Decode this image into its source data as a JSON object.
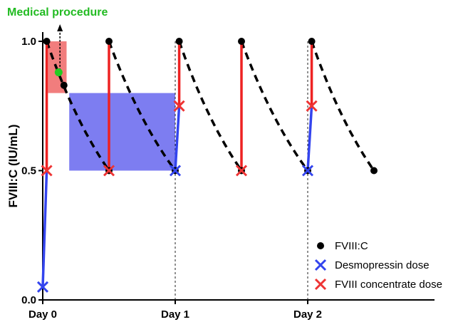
{
  "chart_data": {
    "type": "line",
    "title": "",
    "xlabel": "",
    "ylabel": "FVIII:C (IU/mL)",
    "xlim": [
      0,
      3
    ],
    "ylim": [
      0,
      1
    ],
    "x_ticks": [
      {
        "value": 0,
        "label": "Day 0"
      },
      {
        "value": 1,
        "label": "Day 1"
      },
      {
        "value": 2,
        "label": "Day 2"
      }
    ],
    "y_ticks": [
      {
        "value": 0,
        "label": "0.0"
      },
      {
        "value": 0.5,
        "label": "0.5"
      },
      {
        "value": 1,
        "label": "1.0"
      }
    ],
    "grid": false,
    "vlines": [
      1,
      2
    ],
    "annotation": {
      "text": "Medical procedure",
      "color": "#22bb22",
      "arrow_x": 0.13
    },
    "shaded_regions": [
      {
        "x": [
          0.04,
          0.18
        ],
        "y": [
          0.8,
          1.0
        ],
        "color": "#ee6666"
      },
      {
        "x": [
          0.2,
          1.0
        ],
        "y": [
          0.5,
          0.8
        ],
        "color": "#6666ee"
      }
    ],
    "rises": [
      {
        "x": [
          0.0,
          0.03
        ],
        "y": [
          0.05,
          0.5
        ],
        "color": "#3344ee"
      },
      {
        "x": [
          0.03,
          0.03
        ],
        "y": [
          0.5,
          1.0
        ],
        "color": "#ee2222"
      },
      {
        "x": [
          0.5,
          0.5
        ],
        "y": [
          0.5,
          1.0
        ],
        "color": "#ee2222"
      },
      {
        "x": [
          1.0,
          1.03
        ],
        "y": [
          0.5,
          0.75
        ],
        "color": "#3344ee"
      },
      {
        "x": [
          1.03,
          1.03
        ],
        "y": [
          0.75,
          1.0
        ],
        "color": "#ee2222"
      },
      {
        "x": [
          1.5,
          1.5
        ],
        "y": [
          0.5,
          1.0
        ],
        "color": "#ee2222"
      },
      {
        "x": [
          2.0,
          2.03
        ],
        "y": [
          0.5,
          0.75
        ],
        "color": "#3344ee"
      },
      {
        "x": [
          2.03,
          2.03
        ],
        "y": [
          0.75,
          1.0
        ],
        "color": "#ee2222"
      }
    ],
    "decays": [
      {
        "x0": 0.03,
        "y0": 1.0,
        "x1": 0.5,
        "y1": 0.5
      },
      {
        "x0": 0.5,
        "y0": 1.0,
        "x1": 1.0,
        "y1": 0.5
      },
      {
        "x0": 1.03,
        "y0": 1.0,
        "x1": 1.5,
        "y1": 0.5
      },
      {
        "x0": 1.5,
        "y0": 1.0,
        "x1": 2.0,
        "y1": 0.5
      },
      {
        "x0": 2.03,
        "y0": 1.0,
        "x1": 2.5,
        "y1": 0.5
      }
    ],
    "points": [
      {
        "x": 0.03,
        "y": 1.0
      },
      {
        "x": 0.16,
        "y": 0.83
      },
      {
        "x": 0.5,
        "y": 0.5
      },
      {
        "x": 0.5,
        "y": 1.0
      },
      {
        "x": 1.0,
        "y": 0.5
      },
      {
        "x": 1.03,
        "y": 1.0
      },
      {
        "x": 1.5,
        "y": 0.5
      },
      {
        "x": 1.5,
        "y": 1.0
      },
      {
        "x": 2.0,
        "y": 0.5
      },
      {
        "x": 2.03,
        "y": 1.0
      },
      {
        "x": 2.5,
        "y": 0.5
      }
    ],
    "procedure_point": {
      "x": 0.12,
      "y": 0.88,
      "color": "#22cc22"
    },
    "desmopressin_doses": [
      {
        "x": 0.0,
        "y": 0.05
      },
      {
        "x": 1.0,
        "y": 0.5
      },
      {
        "x": 2.0,
        "y": 0.5
      }
    ],
    "concentrate_doses": [
      {
        "x": 0.03,
        "y": 0.5
      },
      {
        "x": 0.5,
        "y": 0.5
      },
      {
        "x": 1.03,
        "y": 0.75
      },
      {
        "x": 1.5,
        "y": 0.5
      },
      {
        "x": 2.03,
        "y": 0.75
      }
    ],
    "legend": {
      "position": "bottom-right",
      "items": [
        {
          "label": "FVIII:C",
          "marker": "dot",
          "color": "#000000"
        },
        {
          "label": "Desmopressin dose",
          "marker": "cross",
          "color": "#3344ee"
        },
        {
          "label": "FVIII concentrate dose",
          "marker": "cross",
          "color": "#ee3333"
        }
      ]
    }
  }
}
